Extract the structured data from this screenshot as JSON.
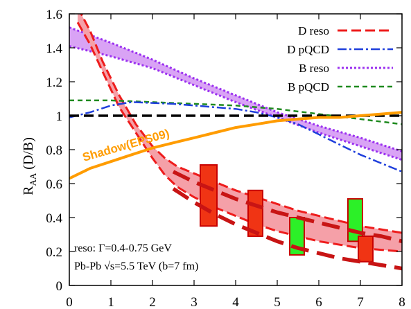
{
  "chart_data": {
    "type": "line",
    "title": "",
    "ylabel_main": "R",
    "ylabel_sub": "AA",
    "ylabel_rest": " (D/B)",
    "xlim": [
      0,
      8
    ],
    "ylim": [
      0,
      1.6
    ],
    "x_ticks": [
      0,
      1,
      2,
      3,
      4,
      5,
      6,
      7,
      8
    ],
    "x_tick_labels": [
      "0",
      "1",
      "2",
      "3",
      "4",
      "5",
      "6",
      "7",
      "8"
    ],
    "y_ticks": [
      0,
      0.2,
      0.4,
      0.6,
      0.8,
      1,
      1.2,
      1.4,
      1.6
    ],
    "y_tick_labels": [
      "0",
      "0.2",
      "0.4",
      "0.6",
      "0.8",
      "1",
      "1.2",
      "1.4",
      "1.6"
    ],
    "legend_position": "top-right",
    "legend": [
      {
        "label": "D reso",
        "color": "#ee1c1c",
        "dash": "14,6",
        "width": 3
      },
      {
        "label": "D pQCD",
        "color": "#1f3fdc",
        "dash": "13,4,3,4",
        "width": 2.5
      },
      {
        "label": "B reso",
        "color": "#9b30f0",
        "dash": "3,3",
        "width": 3
      },
      {
        "label": "B pQCD",
        "color": "#1e8a1e",
        "dash": "7,5",
        "width": 2.5
      }
    ],
    "annotations": {
      "shadow_label": "Shadow(EPS09)",
      "reso_note": "reso: Γ=0.4-0.75 GeV",
      "system_note": "Pb-Pb √s=5.5 TeV (b=7 fm)"
    },
    "colors": {
      "d_band": "#f5a0a8",
      "b_band": "#d9a3f5",
      "shadow": "#ff9c00",
      "reference": "#000000",
      "dark_red": "#c81414",
      "box_red_fill": "#f03414",
      "box_red_stroke": "#c80000",
      "box_green_fill": "#2cf028",
      "box_green_stroke": "#c80000"
    },
    "d_reso_band": {
      "x": [
        0.2,
        0.5,
        0.8,
        1.2,
        1.6,
        2.0,
        2.3,
        2.6,
        3.0,
        3.5,
        4.0,
        4.5,
        5.0,
        5.5,
        6.0,
        6.5,
        7.0,
        7.5,
        8.0
      ],
      "upper": [
        1.64,
        1.5,
        1.32,
        1.12,
        0.95,
        0.82,
        0.75,
        0.7,
        0.66,
        0.61,
        0.56,
        0.52,
        0.48,
        0.44,
        0.41,
        0.38,
        0.35,
        0.33,
        0.31
      ],
      "lower": [
        1.55,
        1.42,
        1.26,
        1.05,
        0.9,
        0.75,
        0.65,
        0.58,
        0.52,
        0.46,
        0.41,
        0.36,
        0.32,
        0.29,
        0.26,
        0.24,
        0.22,
        0.21,
        0.2
      ]
    },
    "b_reso_band": {
      "x": [
        0,
        1,
        2,
        3,
        4,
        5,
        6,
        7,
        8
      ],
      "upper": [
        1.52,
        1.43,
        1.33,
        1.22,
        1.12,
        1.02,
        0.94,
        0.87,
        0.79
      ],
      "lower": [
        1.41,
        1.35,
        1.28,
        1.18,
        1.08,
        0.99,
        0.9,
        0.82,
        0.74
      ]
    },
    "d_pqcd": {
      "x": [
        0,
        0.5,
        1.0,
        1.5,
        2.0,
        2.5,
        3.0,
        3.5,
        4.0,
        4.5,
        5.0,
        5.5,
        6.0,
        6.5,
        7.0,
        7.5,
        8.0
      ],
      "y": [
        0.99,
        1.02,
        1.06,
        1.08,
        1.075,
        1.07,
        1.06,
        1.05,
        1.04,
        1.02,
        0.99,
        0.95,
        0.89,
        0.83,
        0.77,
        0.72,
        0.67
      ]
    },
    "b_pqcd": {
      "x": [
        0,
        1,
        2,
        3,
        4,
        5,
        6,
        7,
        8
      ],
      "y": [
        1.09,
        1.09,
        1.08,
        1.07,
        1.06,
        1.04,
        1.01,
        0.98,
        0.95
      ]
    },
    "reference_line": {
      "y": 1.0
    },
    "shadow_curve": {
      "x": [
        0,
        0.5,
        1.0,
        1.5,
        2.0,
        2.5,
        3.0,
        3.5,
        4.0,
        4.5,
        5.0,
        5.5,
        6.0,
        6.5,
        7.0,
        7.5,
        8.0
      ],
      "y": [
        0.63,
        0.69,
        0.73,
        0.77,
        0.81,
        0.84,
        0.87,
        0.9,
        0.93,
        0.95,
        0.97,
        0.98,
        0.99,
        0.99,
        1.0,
        1.01,
        1.02
      ]
    },
    "dark_dashed_curves": [
      {
        "x": [
          2.5,
          3.0,
          3.5,
          4.0,
          4.5,
          5.0,
          5.5,
          6.0,
          6.5,
          7.0,
          7.5,
          8.0
        ],
        "y": [
          0.67,
          0.61,
          0.56,
          0.51,
          0.47,
          0.43,
          0.4,
          0.37,
          0.34,
          0.31,
          0.29,
          0.26
        ]
      },
      {
        "x": [
          2.5,
          3.0,
          3.5,
          4.0,
          4.5,
          5.0,
          5.5,
          6.0,
          6.5,
          7.0,
          7.5,
          8.0
        ],
        "y": [
          0.57,
          0.49,
          0.42,
          0.36,
          0.31,
          0.26,
          0.22,
          0.19,
          0.16,
          0.14,
          0.12,
          0.1
        ]
      }
    ],
    "boxes": [
      {
        "x0": 3.15,
        "x1": 3.55,
        "y0": 0.35,
        "y1": 0.71,
        "kind": "red"
      },
      {
        "x0": 4.3,
        "x1": 4.65,
        "y0": 0.29,
        "y1": 0.56,
        "kind": "red"
      },
      {
        "x0": 5.3,
        "x1": 5.65,
        "y0": 0.18,
        "y1": 0.4,
        "kind": "green"
      },
      {
        "x0": 6.7,
        "x1": 7.05,
        "y0": 0.26,
        "y1": 0.51,
        "kind": "green"
      },
      {
        "x0": 6.95,
        "x1": 7.3,
        "y0": 0.14,
        "y1": 0.29,
        "kind": "red"
      }
    ]
  }
}
